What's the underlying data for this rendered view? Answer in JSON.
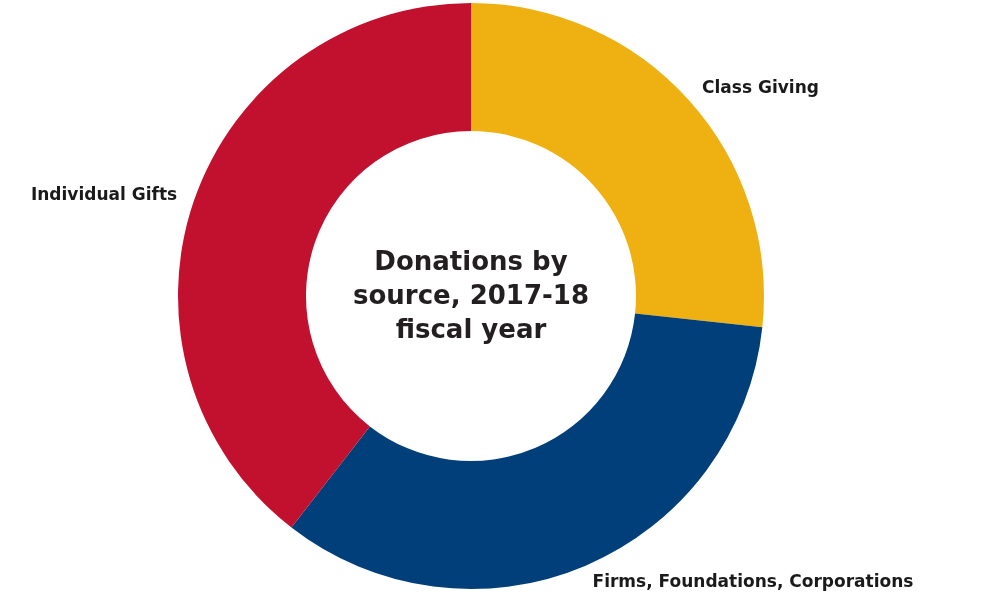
{
  "chart_data": {
    "type": "donut",
    "title": "Donations by source, 2017-18 fiscal year",
    "categories": [
      "Class Giving",
      "Firms, Foundations, Corporations",
      "Individual Gifts"
    ],
    "values": [
      26.7,
      33.8,
      39.5
    ],
    "colors": [
      "#eeb111",
      "#003f7a",
      "#c1112f"
    ]
  }
}
